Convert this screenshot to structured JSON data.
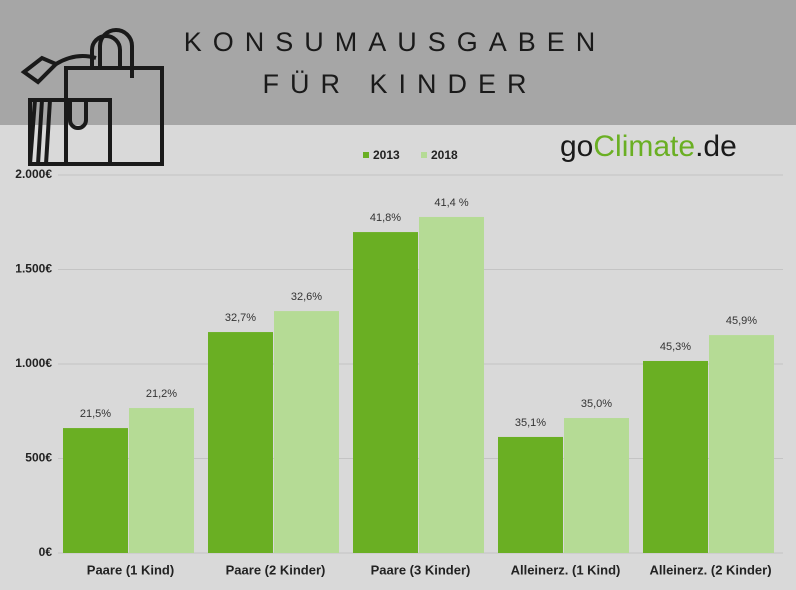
{
  "chart_data": {
    "type": "bar",
    "title_lines": [
      "KONSUMAUSGABEN",
      "FÜR KINDER"
    ],
    "brand": [
      "go",
      "Climate",
      ".de"
    ],
    "categories": [
      "Paare (1 Kind)",
      "Paare (2 Kinder)",
      "Paare (3 Kinder)",
      "Alleinerz. (1 Kind)",
      "Alleinerz. (2 Kinder)"
    ],
    "series": [
      {
        "name": "2013",
        "color": "#6aaf23",
        "values": [
          661,
          1169,
          1698,
          614,
          1016
        ],
        "share_labels": [
          "21,5%",
          "32,7%",
          "41,8%",
          "35,1%",
          "45,3%"
        ]
      },
      {
        "name": "2018",
        "color": "#b5db95",
        "values": [
          767,
          1280,
          1778,
          714,
          1153
        ],
        "share_labels": [
          "21,2%",
          "32,6%",
          "41,4 %",
          "35,0%",
          "45,9%"
        ]
      }
    ],
    "ylim": [
      0,
      2000
    ],
    "yticks": [
      {
        "value": 0,
        "label": "0€"
      },
      {
        "value": 500,
        "label": "500€"
      },
      {
        "value": 1000,
        "label": "1.000€"
      },
      {
        "value": 1500,
        "label": "1.500€"
      },
      {
        "value": 2000,
        "label": "2.000€"
      }
    ],
    "grid": true
  }
}
